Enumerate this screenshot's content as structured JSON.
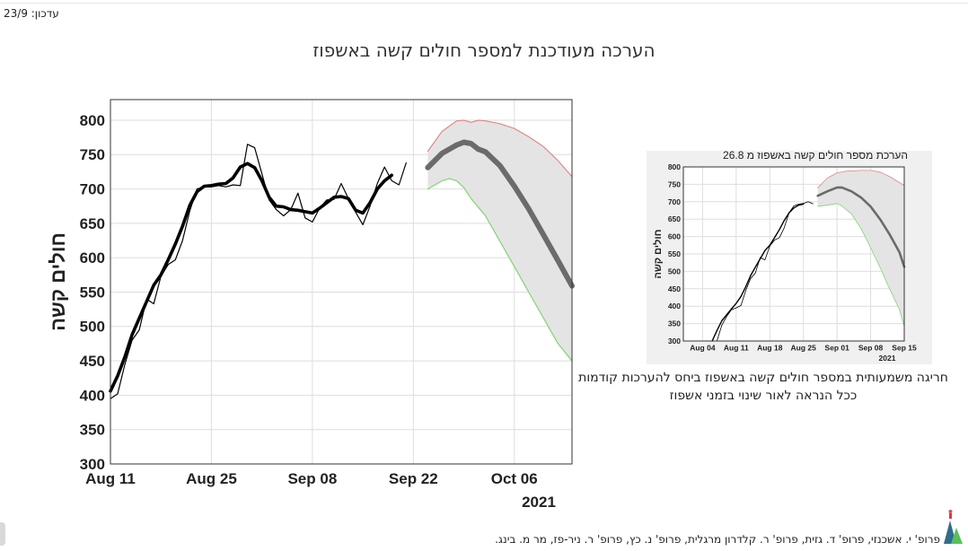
{
  "update_label": "עדכון: 23/9",
  "title": "הערכה מעודכנת למספר חולים קשה באשפוז",
  "note_lines": [
    "חריגה משמעותית במספר חולים קשה באשפוז ביחס להערכות קודמות",
    "ככל הנראה לאור שינוי בזמני אשפוז"
  ],
  "credits": "פרופ' י. אשכנזי, פרופ' ד. גזית, פרופ' ר. קלדרון מרגלית, פרופ' נ. כץ, פרופ' ר. ניר-פז, מר מ. בינג.",
  "chart_data": [
    {
      "type": "line",
      "title": "",
      "xlabel": "",
      "ylabel": "חולים קשה",
      "year_label": "2021",
      "x_unit": "date (2021)",
      "xticks": [
        {
          "date": "2021-08-11",
          "label": "Aug 11"
        },
        {
          "date": "2021-08-25",
          "label": "Aug 25"
        },
        {
          "date": "2021-09-08",
          "label": "Sep 08"
        },
        {
          "date": "2021-09-22",
          "label": "Sep 22"
        },
        {
          "date": "2021-10-06",
          "label": "Oct 06"
        }
      ],
      "xlim": [
        "2021-08-11",
        "2021-10-14"
      ],
      "ylim": [
        300,
        830
      ],
      "yticks": [
        300,
        350,
        400,
        450,
        500,
        550,
        600,
        650,
        700,
        750,
        800
      ],
      "grid": true,
      "colors": {
        "observed": "#000000",
        "smoothed": "#000000",
        "projection": "#6b6b6b",
        "upper": "#e08a86",
        "lower": "#7fd672",
        "band": "#e4e4e4"
      },
      "series": [
        {
          "role": "observed",
          "style": "thin",
          "points": [
            [
              "2021-08-11",
              395
            ],
            [
              "2021-08-12",
              402
            ],
            [
              "2021-08-13",
              445
            ],
            [
              "2021-08-14",
              480
            ],
            [
              "2021-08-15",
              495
            ],
            [
              "2021-08-16",
              540
            ],
            [
              "2021-08-17",
              533
            ],
            [
              "2021-08-18",
              573
            ],
            [
              "2021-08-19",
              590
            ],
            [
              "2021-08-20",
              597
            ],
            [
              "2021-08-21",
              625
            ],
            [
              "2021-08-22",
              668
            ],
            [
              "2021-08-23",
              700
            ],
            [
              "2021-08-24",
              703
            ],
            [
              "2021-08-25",
              703
            ],
            [
              "2021-08-26",
              705
            ],
            [
              "2021-08-27",
              703
            ],
            [
              "2021-08-28",
              706
            ],
            [
              "2021-08-29",
              705
            ],
            [
              "2021-08-30",
              765
            ],
            [
              "2021-08-31",
              760
            ],
            [
              "2021-09-01",
              722
            ],
            [
              "2021-09-02",
              684
            ],
            [
              "2021-09-03",
              670
            ],
            [
              "2021-09-04",
              661
            ],
            [
              "2021-09-05",
              670
            ],
            [
              "2021-09-06",
              694
            ],
            [
              "2021-09-07",
              658
            ],
            [
              "2021-09-08",
              652
            ],
            [
              "2021-09-09",
              672
            ],
            [
              "2021-09-10",
              684
            ],
            [
              "2021-09-11",
              685
            ],
            [
              "2021-09-12",
              708
            ],
            [
              "2021-09-13",
              686
            ],
            [
              "2021-09-14",
              666
            ],
            [
              "2021-09-15",
              648
            ],
            [
              "2021-09-16",
              675
            ],
            [
              "2021-09-17",
              708
            ],
            [
              "2021-09-18",
              732
            ],
            [
              "2021-09-19",
              712
            ],
            [
              "2021-09-20",
              706
            ],
            [
              "2021-09-21",
              738
            ]
          ]
        },
        {
          "role": "smoothed",
          "style": "thick",
          "points": [
            [
              "2021-08-11",
              406
            ],
            [
              "2021-08-12",
              428
            ],
            [
              "2021-08-13",
              456
            ],
            [
              "2021-08-14",
              488
            ],
            [
              "2021-08-15",
              512
            ],
            [
              "2021-08-16",
              536
            ],
            [
              "2021-08-17",
              560
            ],
            [
              "2021-08-18",
              575
            ],
            [
              "2021-08-19",
              597
            ],
            [
              "2021-08-20",
              620
            ],
            [
              "2021-08-21",
              646
            ],
            [
              "2021-08-22",
              676
            ],
            [
              "2021-08-23",
              696
            ],
            [
              "2021-08-24",
              704
            ],
            [
              "2021-08-25",
              705
            ],
            [
              "2021-08-26",
              707
            ],
            [
              "2021-08-27",
              708
            ],
            [
              "2021-08-28",
              716
            ],
            [
              "2021-08-29",
              732
            ],
            [
              "2021-08-30",
              737
            ],
            [
              "2021-08-31",
              731
            ],
            [
              "2021-09-01",
              712
            ],
            [
              "2021-09-02",
              688
            ],
            [
              "2021-09-03",
              675
            ],
            [
              "2021-09-04",
              674
            ],
            [
              "2021-09-05",
              670
            ],
            [
              "2021-09-06",
              669
            ],
            [
              "2021-09-07",
              667
            ],
            [
              "2021-09-08",
              665
            ],
            [
              "2021-09-09",
              672
            ],
            [
              "2021-09-10",
              680
            ],
            [
              "2021-09-11",
              688
            ],
            [
              "2021-09-12",
              689
            ],
            [
              "2021-09-13",
              686
            ],
            [
              "2021-09-14",
              669
            ],
            [
              "2021-09-15",
              665
            ],
            [
              "2021-09-16",
              680
            ],
            [
              "2021-09-17",
              700
            ],
            [
              "2021-09-18",
              712
            ],
            [
              "2021-09-19",
              720
            ]
          ]
        },
        {
          "role": "projection",
          "style": "thick",
          "points": [
            [
              "2021-09-24",
              731
            ],
            [
              "2021-09-26",
              752
            ],
            [
              "2021-09-28",
              764
            ],
            [
              "2021-09-29",
              768
            ],
            [
              "2021-09-30",
              766
            ],
            [
              "2021-10-01",
              758
            ],
            [
              "2021-10-02",
              754
            ],
            [
              "2021-10-04",
              734
            ],
            [
              "2021-10-06",
              704
            ],
            [
              "2021-10-08",
              671
            ],
            [
              "2021-10-10",
              634
            ],
            [
              "2021-10-12",
              597
            ],
            [
              "2021-10-14",
              559
            ]
          ]
        },
        {
          "role": "upper",
          "style": "thin",
          "points": [
            [
              "2021-09-24",
              755
            ],
            [
              "2021-09-26",
              784
            ],
            [
              "2021-09-28",
              799
            ],
            [
              "2021-09-29",
              800
            ],
            [
              "2021-09-30",
              797
            ],
            [
              "2021-10-01",
              800
            ],
            [
              "2021-10-02",
              799
            ],
            [
              "2021-10-04",
              795
            ],
            [
              "2021-10-06",
              788
            ],
            [
              "2021-10-08",
              776
            ],
            [
              "2021-10-10",
              762
            ],
            [
              "2021-10-12",
              742
            ],
            [
              "2021-10-14",
              718
            ]
          ]
        },
        {
          "role": "lower",
          "style": "thin",
          "points": [
            [
              "2021-09-24",
              700
            ],
            [
              "2021-09-26",
              712
            ],
            [
              "2021-09-27",
              715
            ],
            [
              "2021-09-28",
              712
            ],
            [
              "2021-09-29",
              702
            ],
            [
              "2021-09-30",
              686
            ],
            [
              "2021-10-02",
              661
            ],
            [
              "2021-10-04",
              624
            ],
            [
              "2021-10-06",
              587
            ],
            [
              "2021-10-08",
              550
            ],
            [
              "2021-10-10",
              513
            ],
            [
              "2021-10-12",
              476
            ],
            [
              "2021-10-14",
              450
            ]
          ]
        }
      ]
    },
    {
      "type": "line",
      "title": "הערכת מספר חולים קשה באשפוז מ 26.8",
      "xlabel": "",
      "ylabel": "חולים קשה",
      "year_label": "2021",
      "x_unit": "date (2021)",
      "xticks": [
        {
          "date": "2021-08-04",
          "label": "Aug 04"
        },
        {
          "date": "2021-08-11",
          "label": "Aug 11"
        },
        {
          "date": "2021-08-18",
          "label": "Aug 18"
        },
        {
          "date": "2021-08-25",
          "label": "Aug 25"
        },
        {
          "date": "2021-09-01",
          "label": "Sep 01"
        },
        {
          "date": "2021-09-08",
          "label": "Sep 08"
        },
        {
          "date": "2021-09-15",
          "label": "Sep 15"
        }
      ],
      "xlim": [
        "2021-07-31",
        "2021-09-15"
      ],
      "ylim": [
        300,
        800
      ],
      "yticks": [
        300,
        350,
        400,
        450,
        500,
        550,
        600,
        650,
        700,
        750,
        800
      ],
      "grid": true,
      "colors": {
        "observed": "#000000",
        "smoothed": "#000000",
        "projection": "#6b6b6b",
        "upper": "#e08a86",
        "lower": "#7fd672",
        "band": "#e4e4e4"
      },
      "series": [
        {
          "role": "observed",
          "style": "thin",
          "points": [
            [
              "2021-08-07",
              300
            ],
            [
              "2021-08-08",
              345
            ],
            [
              "2021-08-09",
              370
            ],
            [
              "2021-08-10",
              390
            ],
            [
              "2021-08-11",
              395
            ],
            [
              "2021-08-12",
              402
            ],
            [
              "2021-08-13",
              445
            ],
            [
              "2021-08-14",
              480
            ],
            [
              "2021-08-15",
              495
            ],
            [
              "2021-08-16",
              540
            ],
            [
              "2021-08-17",
              533
            ],
            [
              "2021-08-18",
              573
            ],
            [
              "2021-08-19",
              590
            ],
            [
              "2021-08-20",
              597
            ],
            [
              "2021-08-21",
              625
            ],
            [
              "2021-08-22",
              668
            ],
            [
              "2021-08-23",
              688
            ],
            [
              "2021-08-24",
              693
            ],
            [
              "2021-08-25",
              695
            ],
            [
              "2021-08-26",
              700
            ],
            [
              "2021-08-27",
              694
            ]
          ]
        },
        {
          "role": "smoothed",
          "style": "medium",
          "points": [
            [
              "2021-08-06",
              300
            ],
            [
              "2021-08-07",
              330
            ],
            [
              "2021-08-08",
              358
            ],
            [
              "2021-08-09",
              375
            ],
            [
              "2021-08-10",
              392
            ],
            [
              "2021-08-11",
              408
            ],
            [
              "2021-08-12",
              428
            ],
            [
              "2021-08-13",
              456
            ],
            [
              "2021-08-14",
              488
            ],
            [
              "2021-08-15",
              512
            ],
            [
              "2021-08-16",
              536
            ],
            [
              "2021-08-17",
              560
            ],
            [
              "2021-08-18",
              575
            ],
            [
              "2021-08-19",
              597
            ],
            [
              "2021-08-20",
              620
            ],
            [
              "2021-08-21",
              646
            ],
            [
              "2021-08-22",
              668
            ],
            [
              "2021-08-23",
              682
            ],
            [
              "2021-08-24",
              690
            ],
            [
              "2021-08-25",
              693
            ]
          ]
        },
        {
          "role": "projection",
          "style": "thick",
          "points": [
            [
              "2021-08-28",
              717
            ],
            [
              "2021-08-30",
              730
            ],
            [
              "2021-09-01",
              741
            ],
            [
              "2021-09-02",
              741
            ],
            [
              "2021-09-04",
              730
            ],
            [
              "2021-09-06",
              712
            ],
            [
              "2021-09-08",
              686
            ],
            [
              "2021-09-10",
              649
            ],
            [
              "2021-09-12",
              605
            ],
            [
              "2021-09-14",
              555
            ],
            [
              "2021-09-15",
              513
            ]
          ]
        },
        {
          "role": "upper",
          "style": "thin",
          "points": [
            [
              "2021-08-28",
              740
            ],
            [
              "2021-08-30",
              768
            ],
            [
              "2021-09-01",
              783
            ],
            [
              "2021-09-03",
              788
            ],
            [
              "2021-09-06",
              790
            ],
            [
              "2021-09-08",
              790
            ],
            [
              "2021-09-10",
              785
            ],
            [
              "2021-09-12",
              772
            ],
            [
              "2021-09-14",
              755
            ],
            [
              "2021-09-15",
              747
            ]
          ]
        },
        {
          "role": "lower",
          "style": "thin",
          "points": [
            [
              "2021-08-28",
              687
            ],
            [
              "2021-08-30",
              690
            ],
            [
              "2021-09-01",
              695
            ],
            [
              "2021-09-02",
              688
            ],
            [
              "2021-09-04",
              665
            ],
            [
              "2021-09-06",
              623
            ],
            [
              "2021-09-08",
              568
            ],
            [
              "2021-09-10",
              510
            ],
            [
              "2021-09-12",
              448
            ],
            [
              "2021-09-14",
              390
            ],
            [
              "2021-09-15",
              342
            ]
          ]
        }
      ]
    }
  ]
}
